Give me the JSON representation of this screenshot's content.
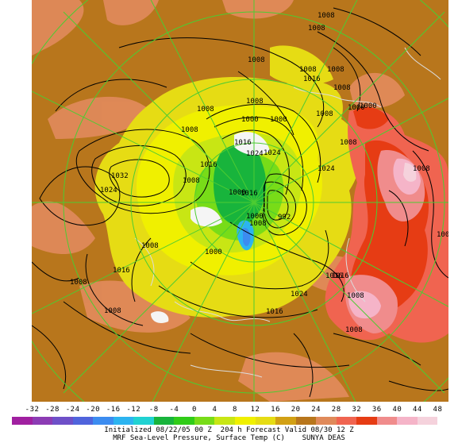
{
  "colors": {
    "background_fill": "#b8761c",
    "grid_line": "#4ccc32",
    "isobar": "#000000",
    "coast": "#dcdcdc"
  },
  "colorbar": {
    "ticks": [
      "-32",
      "-28",
      "-24",
      "-20",
      "-16",
      "-12",
      "-8",
      "-4",
      "0",
      "4",
      "8",
      "12",
      "16",
      "20",
      "24",
      "28",
      "32",
      "36",
      "40",
      "44",
      "48"
    ],
    "bins": [
      "#a020a0",
      "#8c3cb4",
      "#6e50c8",
      "#5064dc",
      "#3c8cf0",
      "#2cb4f0",
      "#20d2d2",
      "#18b43c",
      "#30cc18",
      "#78dc18",
      "#c8e614",
      "#f0f000",
      "#e6dc14",
      "#d2a014",
      "#b8761c",
      "#e08a5a",
      "#f06450",
      "#e63c14",
      "#f08c8c",
      "#f5b4c8",
      "#f5d2dc",
      "#ffffff"
    ]
  },
  "caption": {
    "line1": "Initialized 08/22/05 00 Z  204 h Forecast Valid 08/30 12 Z",
    "line2": "MRF Sea-Level Pressure, Surface Temp (C)    SUNYA DEAS"
  },
  "isobar_labels": [
    "1008",
    "1008",
    "1008",
    "1008",
    "1016",
    "1008",
    "1008",
    "1000",
    "1008",
    "1008",
    "1008",
    "1000",
    "1008",
    "1008",
    "1016",
    "1024",
    "1032",
    "1024",
    "1008",
    "1000",
    "1000",
    "1024",
    "1024",
    "1016",
    "1016",
    "1000",
    "992",
    "1000",
    "1008",
    "1008",
    "1000",
    "1016",
    "1008",
    "1008",
    "1016",
    "1024",
    "1016",
    "1008",
    "1016",
    "1008",
    "1008",
    "1008"
  ]
}
